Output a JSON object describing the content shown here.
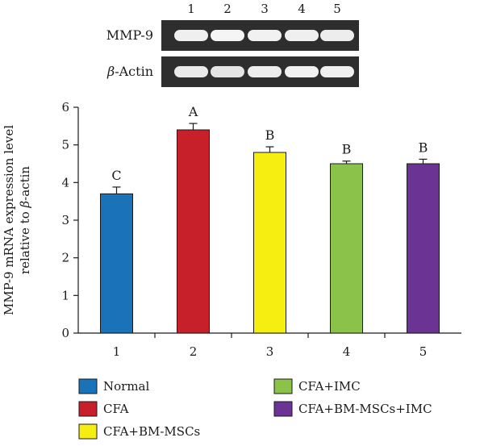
{
  "gel": {
    "lane_numbers": [
      "1",
      "2",
      "3",
      "4",
      "5"
    ],
    "rows": [
      {
        "label_prefix": "",
        "label_italic": "",
        "label_suffix": "MMP-9",
        "band_intensity": [
          0.9,
          0.95,
          0.92,
          0.9,
          0.88
        ]
      },
      {
        "label_prefix": "",
        "label_italic": "β",
        "label_suffix": "-Actin",
        "band_intensity": [
          0.85,
          0.8,
          0.88,
          0.92,
          0.9
        ]
      }
    ]
  },
  "chart_data": {
    "type": "bar",
    "categories": [
      "1",
      "2",
      "3",
      "4",
      "5"
    ],
    "values": [
      3.7,
      5.4,
      4.8,
      4.5,
      4.5
    ],
    "errors": [
      0.18,
      0.17,
      0.15,
      0.07,
      0.12
    ],
    "significance": [
      "C",
      "A",
      "B",
      "B",
      "B"
    ],
    "colors": [
      "#1a73b8",
      "#c8202a",
      "#f5ee10",
      "#8bc34a",
      "#6a3394"
    ],
    "ylim": [
      0,
      6
    ],
    "yticks": [
      0,
      1,
      2,
      3,
      4,
      5,
      6
    ],
    "ylabel_line1": "MMP-9 mRNA expression level",
    "ylabel_line2_prefix": "relative to ",
    "ylabel_line2_italic": "β",
    "ylabel_line2_suffix": "-actin",
    "xlabel": "",
    "title": ""
  },
  "legend": {
    "items": [
      {
        "label": "Normal",
        "color": "#1a73b8"
      },
      {
        "label": "CFA",
        "color": "#c8202a"
      },
      {
        "label": "CFA+BM-MSCs",
        "color": "#f5ee10"
      },
      {
        "label": "CFA+IMC",
        "color": "#8bc34a"
      },
      {
        "label": "CFA+BM-MSCs+IMC",
        "color": "#6a3394"
      }
    ]
  }
}
